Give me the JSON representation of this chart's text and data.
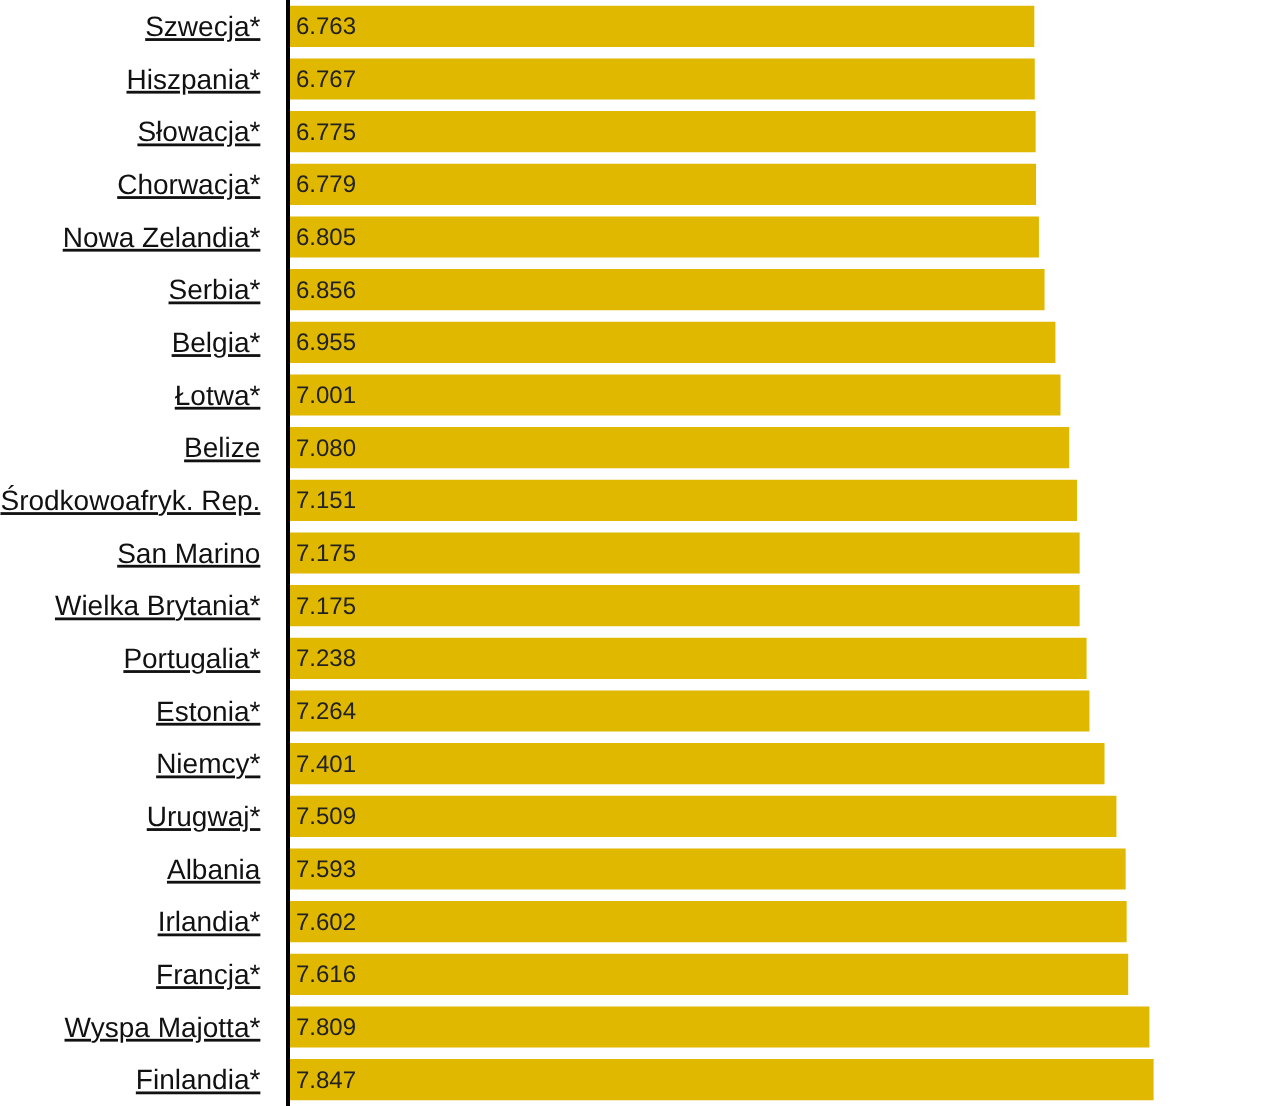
{
  "chart_data": {
    "type": "bar",
    "orientation": "horizontal",
    "categories": [
      "Szwecja*",
      "Hiszpania*",
      "Słowacja*",
      "Chorwacja*",
      "Nowa Zelandia*",
      "Serbia*",
      "Belgia*",
      "Łotwa*",
      "Belize",
      "Środkowoafryk. Rep.",
      "San Marino",
      "Wielka Brytania*",
      "Portugalia*",
      "Estonia*",
      "Niemcy*",
      "Urugwaj*",
      "Albania",
      "Irlandia*",
      "Francja*",
      "Wyspa Majotta*",
      "Finlandia*"
    ],
    "values": [
      6.763,
      6.767,
      6.775,
      6.779,
      6.805,
      6.856,
      6.955,
      7.001,
      7.08,
      7.151,
      7.175,
      7.175,
      7.238,
      7.264,
      7.401,
      7.509,
      7.593,
      7.602,
      7.616,
      7.809,
      7.847
    ],
    "value_labels": [
      "6.763",
      "6.767",
      "6.775",
      "6.779",
      "6.805",
      "6.856",
      "6.955",
      "7.001",
      "7.080",
      "7.151",
      "7.175",
      "7.175",
      "7.238",
      "7.264",
      "7.401",
      "7.509",
      "7.593",
      "7.602",
      "7.616",
      "7.809",
      "7.847"
    ],
    "color": "#e0b800",
    "xlim": [
      0,
      8.85
    ],
    "tick_labels": "y"
  }
}
